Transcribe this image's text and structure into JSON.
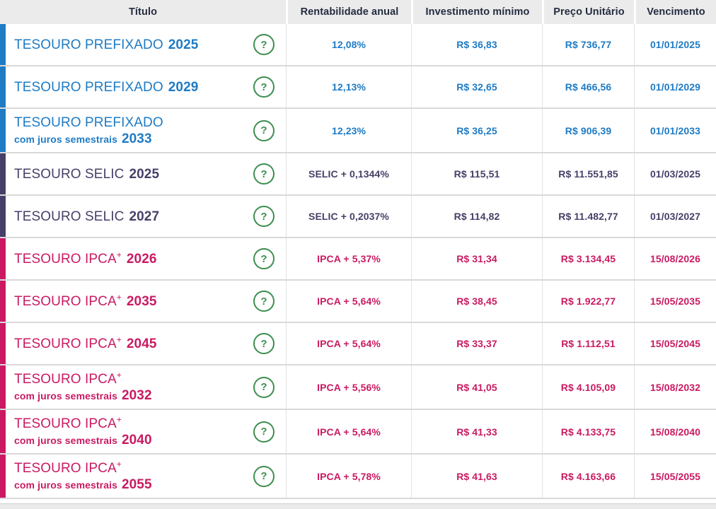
{
  "table": {
    "help_glyph": "?",
    "columns": [
      "Título",
      "Rentabilidade anual",
      "Investimento mínimo",
      "Preço Unitário",
      "Vencimento"
    ],
    "rows": [
      {
        "group": "prefixado",
        "line1": "TESOURO PREFIXADO",
        "plus": "",
        "line1_year": "2025",
        "line2": "",
        "line2_year": "",
        "rate": "12,08%",
        "min_investment": "R$ 36,83",
        "unit_price": "R$ 736,77",
        "maturity": "01/01/2025"
      },
      {
        "group": "prefixado",
        "line1": "TESOURO PREFIXADO",
        "plus": "",
        "line1_year": "2029",
        "line2": "",
        "line2_year": "",
        "rate": "12,13%",
        "min_investment": "R$ 32,65",
        "unit_price": "R$ 466,56",
        "maturity": "01/01/2029"
      },
      {
        "group": "prefixado",
        "line1": "TESOURO PREFIXADO",
        "plus": "",
        "line1_year": "",
        "line2": "com juros semestrais",
        "line2_year": "2033",
        "rate": "12,23%",
        "min_investment": "R$ 36,25",
        "unit_price": "R$ 906,39",
        "maturity": "01/01/2033"
      },
      {
        "group": "selic",
        "line1": "TESOURO SELIC",
        "plus": "",
        "line1_year": "2025",
        "line2": "",
        "line2_year": "",
        "rate": "SELIC + 0,1344%",
        "min_investment": "R$ 115,51",
        "unit_price": "R$ 11.551,85",
        "maturity": "01/03/2025"
      },
      {
        "group": "selic",
        "line1": "TESOURO SELIC",
        "plus": "",
        "line1_year": "2027",
        "line2": "",
        "line2_year": "",
        "rate": "SELIC + 0,2037%",
        "min_investment": "R$ 114,82",
        "unit_price": "R$ 11.482,77",
        "maturity": "01/03/2027"
      },
      {
        "group": "ipca",
        "line1": "TESOURO IPCA",
        "plus": "+",
        "line1_year": "2026",
        "line2": "",
        "line2_year": "",
        "rate": "IPCA + 5,37%",
        "min_investment": "R$ 31,34",
        "unit_price": "R$ 3.134,45",
        "maturity": "15/08/2026"
      },
      {
        "group": "ipca",
        "line1": "TESOURO IPCA",
        "plus": "+",
        "line1_year": "2035",
        "line2": "",
        "line2_year": "",
        "rate": "IPCA + 5,64%",
        "min_investment": "R$ 38,45",
        "unit_price": "R$ 1.922,77",
        "maturity": "15/05/2035"
      },
      {
        "group": "ipca",
        "line1": "TESOURO IPCA",
        "plus": "+",
        "line1_year": "2045",
        "line2": "",
        "line2_year": "",
        "rate": "IPCA + 5,64%",
        "min_investment": "R$ 33,37",
        "unit_price": "R$ 1.112,51",
        "maturity": "15/05/2045"
      },
      {
        "group": "ipca",
        "line1": "TESOURO IPCA",
        "plus": "+",
        "line1_year": "",
        "line2": "com juros semestrais",
        "line2_year": "2032",
        "rate": "IPCA + 5,56%",
        "min_investment": "R$ 41,05",
        "unit_price": "R$ 4.105,09",
        "maturity": "15/08/2032"
      },
      {
        "group": "ipca",
        "line1": "TESOURO IPCA",
        "plus": "+",
        "line1_year": "",
        "line2": "com juros semestrais",
        "line2_year": "2040",
        "rate": "IPCA + 5,64%",
        "min_investment": "R$ 41,33",
        "unit_price": "R$ 4.133,75",
        "maturity": "15/08/2040"
      },
      {
        "group": "ipca",
        "line1": "TESOURO IPCA",
        "plus": "+",
        "line1_year": "",
        "line2": "com juros semestrais",
        "line2_year": "2055",
        "rate": "IPCA + 5,78%",
        "min_investment": "R$ 41,63",
        "unit_price": "R$ 4.163,66",
        "maturity": "15/05/2055"
      }
    ]
  },
  "colors": {
    "prefixado": "#1e7bc4",
    "selic": "#473f68",
    "ipca": "#c91a62",
    "help_icon_green": "#3e8e51",
    "header_bg": "#ebebeb",
    "header_text": "#252c41",
    "row_divider": "#d9d9d9"
  }
}
